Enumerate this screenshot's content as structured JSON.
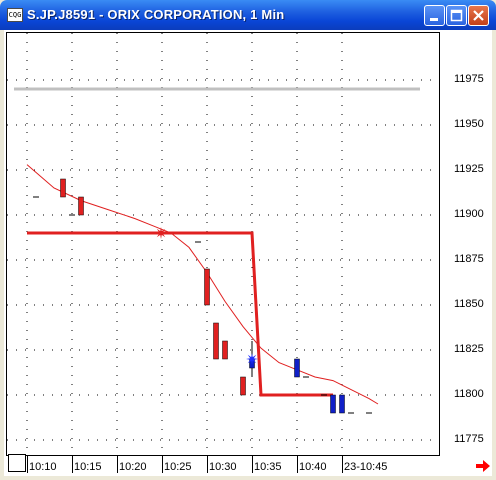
{
  "window": {
    "title": "S.JP.J8591 - ORIX CORPORATION, 1 Min",
    "icon_label": "CQG",
    "buttons": [
      "minimize-icon",
      "maximize-icon",
      "close-icon"
    ]
  },
  "colors": {
    "candle_down": "#e02020",
    "candle_up": "#1020c8",
    "moving_average": "#e02020",
    "level_line": "#e02020",
    "reference_line": "#c0c0c0",
    "grid": "#000000",
    "scroll_arrow": "#ff0000"
  },
  "price_axis": {
    "labels": [
      "11975",
      "11950",
      "11925",
      "11900",
      "11875",
      "11850",
      "11825",
      "11800",
      "11775"
    ]
  },
  "time_axis": {
    "labels": [
      "10:10",
      "10:15",
      "10:20",
      "10:25",
      "10:30",
      "10:35",
      "10:40",
      "23-10:45"
    ]
  },
  "chart_data": {
    "type": "candlestick",
    "title": "S.JP.J8591 - ORIX CORPORATION, 1 Min",
    "xlabel": "",
    "ylabel": "",
    "ylim": [
      11770,
      12000
    ],
    "grid": true,
    "price_ticks": [
      11975,
      11950,
      11925,
      11900,
      11875,
      11850,
      11825,
      11800,
      11775
    ],
    "time_ticks": [
      "10:10",
      "10:15",
      "10:20",
      "10:25",
      "10:30",
      "10:35",
      "10:40",
      "23-10:45"
    ],
    "reference_line": 11970,
    "level_line": {
      "name": "",
      "points": [
        [
          "10:10",
          11890
        ],
        [
          "10:35",
          11890
        ],
        [
          "10:36",
          11800
        ],
        [
          "10:44",
          11800
        ]
      ]
    },
    "candles": [
      {
        "t": "10:11",
        "o": 11910,
        "h": 11910,
        "l": 11910,
        "c": 11910,
        "color": "tick"
      },
      {
        "t": "10:14",
        "o": 11920,
        "h": 11920,
        "l": 11910,
        "c": 11910,
        "color": "down"
      },
      {
        "t": "10:15",
        "o": 11900,
        "h": 11900,
        "l": 11900,
        "c": 11900,
        "color": "tick"
      },
      {
        "t": "10:16",
        "o": 11910,
        "h": 11910,
        "l": 11900,
        "c": 11900,
        "color": "down"
      },
      {
        "t": "10:29",
        "o": 11890,
        "h": 11890,
        "l": 11880,
        "c": 11885,
        "color": "tick"
      },
      {
        "t": "10:30",
        "o": 11870,
        "h": 11870,
        "l": 11850,
        "c": 11850,
        "color": "down"
      },
      {
        "t": "10:31",
        "o": 11840,
        "h": 11840,
        "l": 11820,
        "c": 11820,
        "color": "down"
      },
      {
        "t": "10:32",
        "o": 11830,
        "h": 11830,
        "l": 11820,
        "c": 11820,
        "color": "down"
      },
      {
        "t": "10:34",
        "o": 11810,
        "h": 11810,
        "l": 11800,
        "c": 11800,
        "color": "down"
      },
      {
        "t": "10:35",
        "o": 11815,
        "h": 11830,
        "l": 11810,
        "c": 11820,
        "color": "up"
      },
      {
        "t": "10:40",
        "o": 11810,
        "h": 11820,
        "l": 11810,
        "c": 11820,
        "color": "up"
      },
      {
        "t": "10:41",
        "o": 11810,
        "h": 11810,
        "l": 11810,
        "c": 11810,
        "color": "tick"
      },
      {
        "t": "10:43",
        "o": 11800,
        "h": 11800,
        "l": 11800,
        "c": 11800,
        "color": "tick"
      },
      {
        "t": "10:44",
        "o": 11790,
        "h": 11800,
        "l": 11790,
        "c": 11800,
        "color": "up"
      },
      {
        "t": "10:45",
        "o": 11790,
        "h": 11800,
        "l": 11790,
        "c": 11800,
        "color": "up"
      },
      {
        "t": "10:46",
        "o": 11790,
        "h": 11790,
        "l": 11790,
        "c": 11790,
        "color": "tick"
      },
      {
        "t": "10:48",
        "o": 11790,
        "h": 11790,
        "l": 11790,
        "c": 11790,
        "color": "tick"
      }
    ],
    "moving_average": [
      [
        "10:10",
        11928
      ],
      [
        "10:13",
        11915
      ],
      [
        "10:16",
        11908
      ],
      [
        "10:19",
        11903
      ],
      [
        "10:22",
        11898
      ],
      [
        "10:24",
        11894
      ],
      [
        "10:26",
        11890
      ],
      [
        "10:28",
        11882
      ],
      [
        "10:30",
        11868
      ],
      [
        "10:32",
        11852
      ],
      [
        "10:34",
        11838
      ],
      [
        "10:36",
        11826
      ],
      [
        "10:38",
        11818
      ],
      [
        "10:40",
        11814
      ],
      [
        "10:42",
        11810
      ],
      [
        "10:44",
        11808
      ],
      [
        "10:46",
        11803
      ],
      [
        "10:48",
        11798
      ],
      [
        "10:49",
        11795
      ]
    ]
  }
}
